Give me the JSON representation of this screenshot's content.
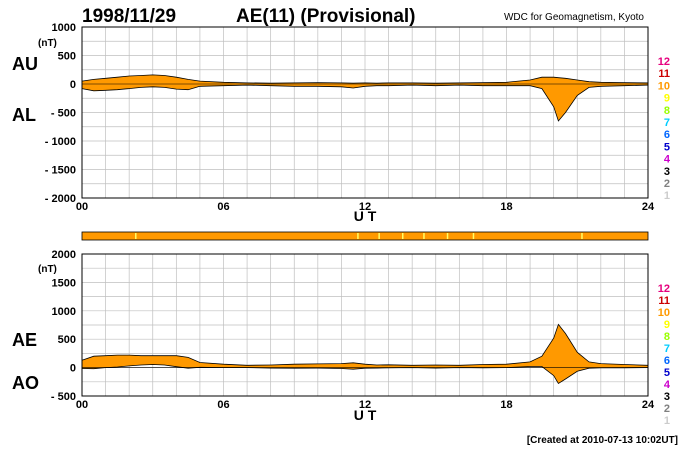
{
  "header": {
    "date": "1998/11/29",
    "title": "AE(11) (Provisional)",
    "source": "WDC for Geomagnetism, Kyoto"
  },
  "footer": {
    "created": "[Created at 2010-07-13 10:02UT]"
  },
  "colors": {
    "fill": "#ff9900",
    "grid": "#bfbfbf",
    "axis": "#000000"
  },
  "station_counts": {
    "labels": [
      "12",
      "11",
      "10",
      "9",
      "8",
      "7",
      "6",
      "5",
      "4",
      "3",
      "2",
      "1"
    ],
    "colors": [
      "#e6007e",
      "#cc0000",
      "#ff9900",
      "#ffff00",
      "#99ff00",
      "#00ccff",
      "#0066ff",
      "#0000cc",
      "#cc00cc",
      "#000000",
      "#808080",
      "#cccccc"
    ]
  },
  "status_bar": {
    "markers": [
      {
        "time": 2.28,
        "color": "#ffff66"
      },
      {
        "time": 11.7,
        "color": "#ffff66"
      },
      {
        "time": 12.6,
        "color": "#ffff66"
      },
      {
        "time": 13.6,
        "color": "#ffff66"
      },
      {
        "time": 14.5,
        "color": "#ffff66"
      },
      {
        "time": 15.5,
        "color": "#ffff66"
      },
      {
        "time": 16.6,
        "color": "#ffff66"
      },
      {
        "time": 21.2,
        "color": "#ffff66"
      }
    ]
  },
  "chart_data": [
    {
      "type": "area",
      "name": "AU/AL",
      "series_labels": [
        "AU",
        "AL"
      ],
      "units": "(nT)",
      "xlabel": "U T",
      "x_ticks": [
        0,
        6,
        12,
        18,
        24
      ],
      "x_tick_labels": [
        "00",
        "06",
        "12",
        "18",
        "24"
      ],
      "xlim": [
        0,
        24
      ],
      "ylim": [
        -2000,
        1000
      ],
      "y_ticks": [
        1000,
        500,
        0,
        -500,
        -1000,
        -1500,
        -2000
      ],
      "y_tick_labels": [
        "1000",
        "500",
        "0",
        "- 500",
        "- 1000",
        "- 1500",
        "- 2000"
      ],
      "grid": true,
      "x": [
        0,
        0.5,
        1,
        1.5,
        2,
        2.5,
        3,
        3.5,
        4,
        4.5,
        5,
        6,
        7,
        8,
        9,
        10,
        11,
        11.5,
        12,
        12.5,
        13,
        14,
        15,
        16,
        17,
        18,
        19,
        19.5,
        20,
        20.2,
        20.5,
        21,
        21.5,
        22,
        23,
        24
      ],
      "upper": [
        50,
        80,
        100,
        120,
        140,
        150,
        160,
        150,
        120,
        80,
        50,
        30,
        20,
        15,
        20,
        25,
        20,
        15,
        20,
        15,
        20,
        20,
        15,
        20,
        25,
        30,
        70,
        120,
        120,
        110,
        100,
        70,
        40,
        30,
        25,
        20
      ],
      "lower": [
        -80,
        -120,
        -110,
        -100,
        -80,
        -60,
        -50,
        -60,
        -90,
        -100,
        -40,
        -30,
        -20,
        -30,
        -40,
        -40,
        -50,
        -70,
        -40,
        -30,
        -30,
        -20,
        -30,
        -20,
        -30,
        -30,
        -30,
        -80,
        -400,
        -650,
        -500,
        -200,
        -60,
        -40,
        -30,
        -20
      ]
    },
    {
      "type": "area",
      "name": "AE/AO",
      "series_labels": [
        "AE",
        "AO"
      ],
      "units": "(nT)",
      "xlabel": "U T",
      "x_ticks": [
        0,
        6,
        12,
        18,
        24
      ],
      "x_tick_labels": [
        "00",
        "06",
        "12",
        "18",
        "24"
      ],
      "xlim": [
        0,
        24
      ],
      "ylim": [
        -500,
        2000
      ],
      "y_ticks": [
        2000,
        1500,
        1000,
        500,
        0,
        -500
      ],
      "y_tick_labels": [
        "2000",
        "1500",
        "1000",
        "500",
        "0",
        "- 500"
      ],
      "grid": true,
      "x": [
        0,
        0.5,
        1,
        1.5,
        2,
        2.5,
        3,
        3.5,
        4,
        4.5,
        5,
        6,
        7,
        8,
        9,
        10,
        11,
        11.5,
        12,
        12.5,
        13,
        14,
        15,
        16,
        17,
        18,
        19,
        19.5,
        20,
        20.2,
        20.5,
        21,
        21.5,
        22,
        23,
        24
      ],
      "upper": [
        130,
        200,
        210,
        220,
        220,
        210,
        210,
        210,
        210,
        180,
        90,
        60,
        40,
        45,
        60,
        65,
        70,
        85,
        60,
        45,
        50,
        40,
        45,
        40,
        55,
        60,
        100,
        200,
        520,
        760,
        600,
        270,
        100,
        70,
        55,
        40
      ],
      "lower": [
        -15,
        -20,
        0,
        10,
        30,
        45,
        55,
        45,
        15,
        -10,
        5,
        0,
        0,
        -8,
        -10,
        -8,
        -15,
        -28,
        -10,
        -8,
        -5,
        0,
        -8,
        0,
        -3,
        0,
        20,
        20,
        -140,
        -280,
        -200,
        -65,
        -10,
        -5,
        -3,
        0
      ]
    }
  ]
}
